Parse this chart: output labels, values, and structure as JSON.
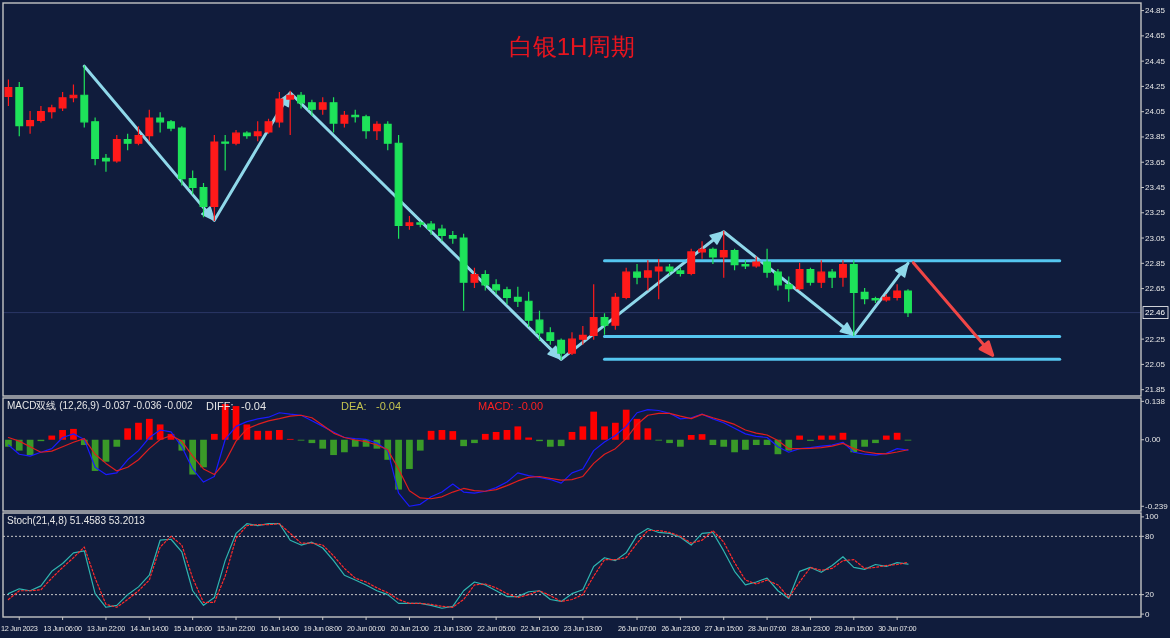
{
  "chart_data": [
    {
      "type": "candlestick",
      "title": "白银1H周期",
      "categories": [
        null,
        null,
        null,
        null,
        null,
        null,
        null,
        null,
        null,
        null,
        null,
        null,
        null,
        null,
        null,
        null,
        null,
        null,
        null,
        null,
        null,
        null,
        null,
        null,
        null,
        null,
        null,
        null,
        null,
        null,
        null,
        null,
        null,
        null,
        null,
        null,
        null,
        null,
        null,
        null,
        null,
        null,
        null,
        null,
        null,
        null,
        null,
        null,
        null,
        null,
        null,
        null,
        null,
        null,
        null,
        null,
        null,
        null,
        null,
        null,
        null,
        null,
        null,
        null,
        null,
        null,
        null,
        null,
        null,
        null,
        null,
        null,
        null,
        null,
        null,
        null,
        null,
        null,
        null,
        null,
        null,
        null,
        null,
        null,
        null,
        null,
        null,
        null,
        null,
        null,
        null,
        null,
        null,
        null,
        null,
        null,
        null,
        null,
        null,
        null,
        null,
        null,
        null,
        null,
        null
      ],
      "ohlc": [
        [
          24.17,
          24.3,
          24.1,
          24.24
        ],
        [
          24.24,
          24.28,
          23.86,
          23.94
        ],
        [
          23.94,
          24.05,
          23.88,
          23.98
        ],
        [
          23.98,
          24.09,
          23.97,
          24.05
        ],
        [
          24.05,
          24.1,
          24.0,
          24.08
        ],
        [
          24.08,
          24.2,
          24.06,
          24.16
        ],
        [
          24.16,
          24.26,
          24.13,
          24.18
        ],
        [
          24.18,
          24.41,
          23.93,
          23.97
        ],
        [
          23.97,
          24.0,
          23.63,
          23.68
        ],
        [
          23.68,
          23.71,
          23.58,
          23.66
        ],
        [
          23.66,
          23.86,
          23.65,
          23.83
        ],
        [
          23.83,
          23.87,
          23.75,
          23.8
        ],
        [
          23.8,
          23.93,
          23.79,
          23.86
        ],
        [
          23.86,
          24.06,
          23.82,
          24.0
        ],
        [
          24.0,
          24.04,
          23.89,
          23.97
        ],
        [
          23.97,
          23.98,
          23.9,
          23.92
        ],
        [
          23.92,
          23.93,
          23.47,
          23.52
        ],
        [
          23.52,
          23.58,
          23.4,
          23.45
        ],
        [
          23.45,
          23.48,
          23.22,
          23.3
        ],
        [
          23.3,
          23.86,
          23.19,
          23.81
        ],
        [
          23.81,
          23.86,
          23.59,
          23.8
        ],
        [
          23.8,
          23.9,
          23.79,
          23.88
        ],
        [
          23.88,
          23.89,
          23.84,
          23.86
        ],
        [
          23.86,
          23.97,
          23.82,
          23.89
        ],
        [
          23.89,
          23.99,
          23.88,
          23.97
        ],
        [
          23.97,
          24.2,
          23.93,
          24.15
        ],
        [
          24.15,
          24.21,
          23.87,
          24.18
        ],
        [
          24.18,
          24.2,
          24.08,
          24.12
        ],
        [
          24.12,
          24.14,
          24.02,
          24.07
        ],
        [
          24.07,
          24.16,
          24.03,
          24.12
        ],
        [
          24.12,
          24.16,
          23.89,
          23.96
        ],
        [
          23.96,
          24.05,
          23.93,
          24.02
        ],
        [
          24.02,
          24.06,
          23.97,
          24.01
        ],
        [
          24.01,
          24.02,
          23.84,
          23.9
        ],
        [
          23.9,
          23.97,
          23.83,
          23.95
        ],
        [
          23.95,
          23.97,
          23.75,
          23.8
        ],
        [
          23.8,
          23.86,
          23.05,
          23.15
        ],
        [
          23.15,
          23.22,
          23.12,
          23.17
        ],
        [
          23.17,
          23.18,
          23.14,
          23.16
        ],
        [
          23.16,
          23.18,
          23.08,
          23.12
        ],
        [
          23.12,
          23.15,
          23.03,
          23.07
        ],
        [
          23.07,
          23.1,
          23.01,
          23.05
        ],
        [
          23.05,
          23.08,
          22.48,
          22.7
        ],
        [
          22.7,
          22.81,
          22.66,
          22.76
        ],
        [
          22.76,
          22.79,
          22.64,
          22.68
        ],
        [
          22.68,
          22.72,
          22.61,
          22.64
        ],
        [
          22.64,
          22.66,
          22.53,
          22.58
        ],
        [
          22.58,
          22.66,
          22.51,
          22.55
        ],
        [
          22.55,
          22.62,
          22.35,
          22.4
        ],
        [
          22.4,
          22.47,
          22.24,
          22.3
        ],
        [
          22.3,
          22.34,
          22.21,
          22.24
        ],
        [
          22.24,
          22.25,
          22.09,
          22.14
        ],
        [
          22.14,
          22.3,
          22.13,
          22.25
        ],
        [
          22.25,
          22.35,
          22.21,
          22.28
        ],
        [
          22.28,
          22.68,
          22.25,
          22.42
        ],
        [
          22.42,
          22.45,
          22.29,
          22.36
        ],
        [
          22.36,
          22.61,
          22.33,
          22.58
        ],
        [
          22.58,
          22.81,
          22.57,
          22.78
        ],
        [
          22.78,
          22.84,
          22.69,
          22.74
        ],
        [
          22.74,
          22.87,
          22.64,
          22.79
        ],
        [
          22.79,
          22.88,
          22.57,
          22.82
        ],
        [
          22.82,
          22.84,
          22.76,
          22.79
        ],
        [
          22.79,
          22.81,
          22.75,
          22.77
        ],
        [
          22.77,
          22.96,
          22.76,
          22.94
        ],
        [
          22.94,
          23.02,
          22.89,
          22.96
        ],
        [
          22.96,
          22.97,
          22.85,
          22.9
        ],
        [
          22.9,
          23.1,
          22.74,
          22.95
        ],
        [
          22.95,
          22.96,
          22.8,
          22.84
        ],
        [
          22.84,
          22.87,
          22.81,
          22.83
        ],
        [
          22.83,
          22.9,
          22.82,
          22.86
        ],
        [
          22.86,
          22.96,
          22.74,
          22.78
        ],
        [
          22.78,
          22.8,
          22.64,
          22.68
        ],
        [
          22.68,
          22.74,
          22.55,
          22.65
        ],
        [
          22.65,
          22.85,
          22.64,
          22.8
        ],
        [
          22.8,
          22.81,
          22.68,
          22.7
        ],
        [
          22.7,
          22.87,
          22.66,
          22.78
        ],
        [
          22.78,
          22.8,
          22.66,
          22.74
        ],
        [
          22.74,
          22.87,
          22.67,
          22.84
        ],
        [
          22.84,
          22.87,
          22.28,
          22.62
        ],
        [
          22.62,
          22.65,
          22.53,
          22.57
        ],
        [
          22.57,
          22.58,
          22.54,
          22.56
        ],
        [
          22.56,
          22.6,
          22.55,
          22.58
        ],
        [
          22.58,
          22.68,
          22.56,
          22.63
        ],
        [
          22.63,
          22.64,
          22.43,
          22.46
        ],
        null,
        null,
        null,
        null,
        null,
        null,
        null,
        null,
        null,
        null,
        null,
        null,
        null,
        null,
        null,
        null,
        null,
        null,
        null,
        null,
        null
      ],
      "colors": [
        "#ff1a1a",
        "#1ee35a",
        "#ff1a1a",
        "#ff1a1a",
        "#ff1a1a",
        "#ff1a1a",
        "#ff1a1a",
        "#1ee35a",
        "#1ee35a",
        "#1ee35a",
        "#ff1a1a",
        "#1ee35a",
        "#ff1a1a",
        "#ff1a1a",
        "#1ee35a",
        "#1ee35a",
        "#1ee35a",
        "#1ee35a",
        "#1ee35a",
        "#ff1a1a",
        "#1ee35a",
        "#ff1a1a",
        "#1ee35a",
        "#ff1a1a",
        "#ff1a1a",
        "#ff1a1a",
        "#ff1a1a",
        "#1ee35a",
        "#1ee35a",
        "#ff1a1a",
        "#1ee35a",
        "#ff1a1a",
        "#1ee35a",
        "#1ee35a",
        "#ff1a1a",
        "#1ee35a",
        "#1ee35a",
        "#ff1a1a",
        "#1ee35a",
        "#1ee35a",
        "#1ee35a",
        "#1ee35a",
        "#1ee35a",
        "#ff1a1a",
        "#1ee35a",
        "#1ee35a",
        "#1ee35a",
        "#1ee35a",
        "#1ee35a",
        "#1ee35a",
        "#1ee35a",
        "#1ee35a",
        "#ff1a1a",
        "#ff1a1a",
        "#ff1a1a",
        "#1ee35a",
        "#ff1a1a",
        "#ff1a1a",
        "#1ee35a",
        "#ff1a1a",
        "#ff1a1a",
        "#1ee35a",
        "#1ee35a",
        "#ff1a1a",
        "#ff1a1a",
        "#1ee35a",
        "#ff1a1a",
        "#1ee35a",
        "#1ee35a",
        "#ff1a1a",
        "#1ee35a",
        "#1ee35a",
        "#1ee35a",
        "#ff1a1a",
        "#1ee35a",
        "#ff1a1a",
        "#1ee35a",
        "#ff1a1a",
        "#1ee35a",
        "#1ee35a",
        "#1ee35a",
        "#ff1a1a",
        "#ff1a1a",
        "#1ee35a",
        null,
        null,
        null,
        null,
        null,
        null,
        null,
        null,
        null,
        null,
        null,
        null,
        null,
        null,
        null,
        null,
        null,
        null,
        null,
        null,
        null
      ],
      "series": [
        {
          "type": "line",
          "color": "#8fd8ea",
          "values": [
            null,
            null,
            null,
            null,
            null,
            null,
            null,
            24.41,
            null,
            null,
            null,
            null,
            null,
            null,
            null,
            null,
            null,
            null,
            null,
            23.19,
            null,
            null,
            null,
            null,
            null,
            null,
            24.2,
            null,
            null,
            null,
            null,
            null,
            null,
            null,
            null,
            null,
            null,
            null,
            null,
            null,
            null,
            null,
            null,
            null,
            null,
            null,
            null,
            null,
            null,
            null,
            null,
            22.09,
            null,
            null,
            null,
            null,
            null,
            null,
            null,
            null,
            null,
            null,
            null,
            null,
            null,
            null,
            23.1,
            null,
            null,
            null,
            null,
            null,
            null,
            null,
            null,
            null,
            null,
            null,
            22.28,
            null,
            null,
            null,
            null,
            22.85,
            null,
            null,
            null,
            null,
            null,
            null,
            null,
            null,
            null,
            null,
            null,
            null,
            null,
            null,
            null,
            null,
            null,
            null,
            null,
            null,
            null
          ]
        },
        {
          "type": "line",
          "color": "#55c6f0",
          "values": [
            null,
            null,
            null,
            null,
            null,
            null,
            null,
            null,
            null,
            null,
            null,
            null,
            null,
            null,
            null,
            null,
            null,
            null,
            null,
            null,
            null,
            null,
            null,
            null,
            null,
            null,
            null,
            null,
            null,
            null,
            null,
            null,
            null,
            null,
            null,
            null,
            null,
            null,
            null,
            null,
            null,
            null,
            null,
            null,
            null,
            null,
            null,
            null,
            null,
            null,
            null,
            null,
            null,
            null,
            null,
            22.87,
            null,
            null,
            null,
            null,
            null,
            null,
            null,
            null,
            null,
            null,
            null,
            null,
            null,
            null,
            null,
            null,
            null,
            null,
            null,
            null,
            null,
            null,
            null,
            null,
            null,
            null,
            null,
            null,
            null,
            null,
            null,
            null,
            null,
            null,
            null,
            null,
            null,
            null,
            null,
            null,
            null,
            22.87,
            null,
            null,
            null,
            null,
            null,
            null,
            null
          ]
        },
        {
          "type": "line",
          "color": "#55c6f0",
          "values": [
            null,
            null,
            null,
            null,
            null,
            null,
            null,
            null,
            null,
            null,
            null,
            null,
            null,
            null,
            null,
            null,
            null,
            null,
            null,
            null,
            null,
            null,
            null,
            null,
            null,
            null,
            null,
            null,
            null,
            null,
            null,
            null,
            null,
            null,
            null,
            null,
            null,
            null,
            null,
            null,
            null,
            null,
            null,
            null,
            null,
            null,
            null,
            null,
            null,
            null,
            null,
            null,
            null,
            null,
            null,
            22.27,
            null,
            null,
            null,
            null,
            null,
            null,
            null,
            null,
            null,
            null,
            null,
            null,
            null,
            null,
            null,
            null,
            null,
            null,
            null,
            null,
            null,
            null,
            null,
            null,
            null,
            null,
            null,
            null,
            null,
            null,
            null,
            null,
            null,
            null,
            null,
            null,
            null,
            null,
            null,
            null,
            null,
            22.27,
            null,
            null,
            null,
            null,
            null,
            null,
            null
          ]
        },
        {
          "type": "line",
          "color": "#55c6f0",
          "values": [
            null,
            null,
            null,
            null,
            null,
            null,
            null,
            null,
            null,
            null,
            null,
            null,
            null,
            null,
            null,
            null,
            null,
            null,
            null,
            null,
            null,
            null,
            null,
            null,
            null,
            null,
            null,
            null,
            null,
            null,
            null,
            null,
            null,
            null,
            null,
            null,
            null,
            null,
            null,
            null,
            null,
            null,
            null,
            null,
            null,
            null,
            null,
            null,
            null,
            null,
            null,
            null,
            null,
            null,
            null,
            22.09,
            null,
            null,
            null,
            null,
            null,
            null,
            null,
            null,
            null,
            null,
            null,
            null,
            null,
            null,
            null,
            null,
            null,
            null,
            null,
            null,
            null,
            null,
            null,
            null,
            null,
            null,
            null,
            null,
            null,
            null,
            null,
            null,
            null,
            null,
            null,
            null,
            null,
            null,
            null,
            null,
            null,
            22.09,
            null,
            null,
            null,
            null,
            null,
            null,
            null
          ]
        }
      ],
      "ref_lines": [
        {
          "axis": "y",
          "value": 22.46,
          "label": "22.46",
          "color": "#2b3766"
        }
      ],
      "ylim": [
        21.8,
        24.91
      ],
      "yticks": [
        24.85,
        24.65,
        24.45,
        24.25,
        24.05,
        23.85,
        23.65,
        23.45,
        23.25,
        23.05,
        22.85,
        22.65,
        22.25,
        22.05,
        21.85
      ],
      "tick_labels": "y"
    },
    {
      "type": "bar",
      "title": "MACD双线 (12,26,9) -0.037 -0.036 -0.002",
      "categories": [
        null,
        null,
        null,
        null,
        null,
        null,
        null,
        null,
        null,
        null,
        null,
        null,
        null,
        null,
        null,
        null,
        null,
        null,
        null,
        null,
        null,
        null,
        null,
        null,
        null,
        null,
        null,
        null,
        null,
        null,
        null,
        null,
        null,
        null,
        null,
        null,
        null,
        null,
        null,
        null,
        null,
        null,
        null,
        null,
        null,
        null,
        null,
        null,
        null,
        null,
        null,
        null,
        null,
        null,
        null,
        null,
        null,
        null,
        null,
        null,
        null,
        null,
        null,
        null,
        null,
        null,
        null,
        null,
        null,
        null,
        null,
        null,
        null,
        null,
        null,
        null,
        null,
        null,
        null,
        null,
        null,
        null,
        null,
        null,
        null,
        null,
        null,
        null,
        null,
        null,
        null,
        null,
        null,
        null,
        null,
        null,
        null,
        null,
        null,
        null,
        null,
        null,
        null,
        null,
        null
      ],
      "series": [
        {
          "values": [
            -0.025,
            -0.039,
            -0.055,
            -0.005,
            0.015,
            0.035,
            0.039,
            -0.019,
            -0.112,
            -0.079,
            -0.025,
            0.041,
            0.061,
            0.075,
            0.055,
            0.021,
            -0.039,
            -0.125,
            -0.099,
            0.021,
            0.128,
            0.121,
            0.055,
            0.032,
            0.032,
            0.035,
            0.003,
            -0.003,
            -0.012,
            -0.032,
            -0.055,
            -0.045,
            -0.025,
            -0.025,
            -0.032,
            -0.072,
            -0.179,
            -0.105,
            -0.039,
            0.032,
            0.035,
            0.031,
            -0.023,
            -0.012,
            0.021,
            0.028,
            0.035,
            0.048,
            0.008,
            -0.005,
            -0.025,
            -0.023,
            0.028,
            0.048,
            0.101,
            0.048,
            0.061,
            0.108,
            0.075,
            0.041,
            -0.003,
            -0.012,
            -0.025,
            0.017,
            0.02,
            -0.019,
            -0.025,
            -0.045,
            -0.036,
            -0.019,
            -0.019,
            -0.052,
            -0.039,
            0.015,
            -0.004,
            0.015,
            0.015,
            0.025,
            -0.045,
            -0.025,
            -0.012,
            0.015,
            0.025,
            -0.002,
            null,
            null,
            null,
            null,
            null,
            null,
            null,
            null,
            null,
            null,
            null,
            null,
            null,
            null,
            null,
            null,
            null,
            null,
            null,
            null,
            null
          ],
          "colors": [
            "#3a9a28",
            "#3a9a28",
            "#3a9a28",
            "#3a9a28",
            "#ff0000",
            "#ff0000",
            "#ff0000",
            "#3a9a28",
            "#3a9a28",
            "#3a9a28",
            "#3a9a28",
            "#ff0000",
            "#ff0000",
            "#ff0000",
            "#ff0000",
            "#ff0000",
            "#3a9a28",
            "#3a9a28",
            "#3a9a28",
            "#ff0000",
            "#ff0000",
            "#ff0000",
            "#ff0000",
            "#ff0000",
            "#ff0000",
            "#ff0000",
            "#ff0000",
            "#3a9a28",
            "#3a9a28",
            "#3a9a28",
            "#3a9a28",
            "#3a9a28",
            "#3a9a28",
            "#3a9a28",
            "#3a9a28",
            "#3a9a28",
            "#3a9a28",
            "#3a9a28",
            "#3a9a28",
            "#ff0000",
            "#ff0000",
            "#ff0000",
            "#3a9a28",
            "#3a9a28",
            "#ff0000",
            "#ff0000",
            "#ff0000",
            "#ff0000",
            "#ff0000",
            "#3a9a28",
            "#3a9a28",
            "#3a9a28",
            "#ff0000",
            "#ff0000",
            "#ff0000",
            "#ff0000",
            "#ff0000",
            "#ff0000",
            "#ff0000",
            "#ff0000",
            "#3a9a28",
            "#3a9a28",
            "#3a9a28",
            "#ff0000",
            "#ff0000",
            "#3a9a28",
            "#3a9a28",
            "#3a9a28",
            "#3a9a28",
            "#3a9a28",
            "#3a9a28",
            "#3a9a28",
            "#3a9a28",
            "#ff0000",
            "#3a9a28",
            "#ff0000",
            "#ff0000",
            "#ff0000",
            "#3a9a28",
            "#3a9a28",
            "#3a9a28",
            "#ff0000",
            "#ff0000",
            "#3a9a28",
            null,
            null,
            null,
            null,
            null,
            null,
            null,
            null,
            null,
            null,
            null,
            null,
            null,
            null,
            null,
            null,
            null,
            null,
            null,
            null,
            null
          ]
        },
        {
          "type": "line",
          "color": "#1a1aff",
          "values": [
            -0.019,
            -0.052,
            -0.059,
            -0.045,
            -0.032,
            0.008,
            0.021,
            0.001,
            -0.099,
            -0.125,
            -0.119,
            -0.072,
            -0.039,
            0.008,
            0.035,
            0.028,
            -0.025,
            -0.105,
            -0.152,
            -0.132,
            0.001,
            0.048,
            0.065,
            0.075,
            0.081,
            0.097,
            0.092,
            0.088,
            0.068,
            0.048,
            0.028,
            0.008,
            0.004,
            0.001,
            -0.012,
            -0.039,
            -0.192,
            -0.239,
            -0.232,
            -0.205,
            -0.188,
            -0.159,
            -0.188,
            -0.192,
            -0.185,
            -0.172,
            -0.152,
            -0.119,
            -0.129,
            -0.135,
            -0.143,
            -0.156,
            -0.119,
            -0.105,
            -0.039,
            -0.008,
            0.015,
            0.048,
            0.097,
            0.108,
            0.105,
            0.095,
            0.075,
            0.079,
            0.092,
            0.075,
            0.061,
            0.041,
            0.021,
            0.012,
            0.008,
            -0.025,
            -0.045,
            -0.032,
            -0.028,
            -0.023,
            -0.019,
            -0.009,
            -0.045,
            -0.052,
            -0.055,
            -0.049,
            -0.032,
            -0.037,
            null,
            null,
            null,
            null,
            null,
            null,
            null,
            null,
            null,
            null,
            null,
            null,
            null,
            null,
            null,
            null,
            null,
            null,
            null,
            null,
            null
          ]
        },
        {
          "type": "line",
          "color": "#e01e1e",
          "values": [
            0.008,
            -0.005,
            -0.025,
            -0.045,
            -0.041,
            -0.025,
            -0.009,
            0.004,
            -0.052,
            -0.085,
            -0.112,
            -0.099,
            -0.072,
            -0.032,
            0.001,
            0.015,
            -0.005,
            -0.059,
            -0.105,
            -0.125,
            -0.079,
            -0.005,
            0.039,
            0.055,
            0.068,
            0.076,
            0.085,
            0.088,
            0.079,
            0.052,
            0.024,
            0.008,
            -0.001,
            -0.007,
            -0.019,
            -0.036,
            -0.105,
            -0.183,
            -0.209,
            -0.212,
            -0.205,
            -0.188,
            -0.175,
            -0.183,
            -0.185,
            -0.179,
            -0.165,
            -0.148,
            -0.135,
            -0.132,
            -0.139,
            -0.145,
            -0.143,
            -0.132,
            -0.085,
            -0.052,
            -0.032,
            0.004,
            0.055,
            0.088,
            0.095,
            0.095,
            0.085,
            0.076,
            0.091,
            0.079,
            0.068,
            0.055,
            0.035,
            0.024,
            0.017,
            -0.003,
            -0.032,
            -0.032,
            -0.031,
            -0.028,
            -0.023,
            -0.013,
            -0.032,
            -0.043,
            -0.049,
            -0.051,
            -0.044,
            -0.036,
            null,
            null,
            null,
            null,
            null,
            null,
            null,
            null,
            null,
            null,
            null,
            null,
            null,
            null,
            null,
            null,
            null,
            null,
            null,
            null,
            null
          ]
        }
      ],
      "annotations": [
        "DIFF:",
        "-0.04",
        "DEA:",
        "-0.04",
        "MACD:",
        "-0.00"
      ],
      "ylim": [
        -0.256,
        0.15
      ],
      "yticks": [
        0.138,
        {
          "value": 0,
          "label": "0.00"
        },
        -0.239
      ],
      "tick_labels": "y"
    },
    {
      "type": "line",
      "title": "Stoch(21,4,8) 51.4583 53.2013",
      "categories": [
        null,
        "12 Jun 2023",
        null,
        null,
        null,
        "13 Jun 06:00",
        null,
        null,
        null,
        "13 Jun 22:00",
        null,
        null,
        null,
        "14 Jun 14:00",
        null,
        null,
        null,
        "15 Jun 06:00",
        null,
        null,
        null,
        "15 Jun 22:00",
        null,
        null,
        null,
        "16 Jun 14:00",
        null,
        null,
        null,
        "19 Jun 08:00",
        null,
        null,
        null,
        "20 Jun 00:00",
        null,
        null,
        null,
        "20 Jun 21:00",
        null,
        null,
        null,
        "21 Jun 13:00",
        null,
        null,
        null,
        "22 Jun 05:00",
        null,
        null,
        null,
        "22 Jun 21:00",
        null,
        null,
        null,
        "23 Jun 13:00",
        null,
        null,
        null,
        null,
        "26 Jun 07:00",
        null,
        null,
        null,
        "26 Jun 23:00",
        null,
        null,
        null,
        "27 Jun 15:00",
        null,
        null,
        null,
        "28 Jun 07:00",
        null,
        null,
        null,
        "28 Jun 23:00",
        null,
        null,
        null,
        "29 Jun 15:00",
        null,
        null,
        null,
        "30 Jun 07:00",
        null,
        null,
        null,
        null,
        null,
        null,
        null,
        null,
        null,
        null,
        null,
        null,
        null,
        null,
        null,
        null,
        null,
        null,
        null,
        null,
        null,
        null
      ],
      "series": [
        {
          "color": "#2fb5b0",
          "values": [
            21,
            26,
            24,
            29,
            44,
            52,
            63,
            65,
            21,
            7,
            9,
            20,
            28,
            40,
            76,
            77,
            64,
            24,
            9,
            17,
            55,
            83,
            93,
            91,
            93,
            93,
            76,
            71,
            74,
            68,
            55,
            40,
            35,
            30,
            24,
            20,
            11,
            11,
            11,
            9,
            6,
            8,
            24,
            33,
            30,
            24,
            18,
            18,
            23,
            24,
            15,
            13,
            21,
            25,
            49,
            58,
            55,
            63,
            81,
            88,
            84,
            83,
            79,
            71,
            83,
            84,
            65,
            44,
            30,
            33,
            37,
            24,
            16,
            44,
            48,
            43,
            50,
            59,
            48,
            46,
            51,
            49,
            53,
            51.4583,
            null,
            null,
            null,
            null,
            null,
            null,
            null,
            null,
            null,
            null,
            null,
            null,
            null,
            null,
            null,
            null,
            null,
            null,
            null,
            null,
            null
          ]
        },
        {
          "color": "#ff2a2a",
          "line_style": "dotted",
          "values": [
            15,
            24,
            24,
            25,
            37,
            48,
            58,
            69,
            37,
            10,
            7,
            15,
            24,
            35,
            69,
            80,
            71,
            37,
            12,
            12,
            39,
            78,
            91,
            92,
            92,
            93,
            83,
            73,
            73,
            71,
            60,
            47,
            37,
            33,
            27,
            22,
            15,
            11,
            11,
            10,
            8,
            7,
            15,
            30,
            31,
            27,
            21,
            17,
            20,
            24,
            19,
            13,
            15,
            20,
            39,
            56,
            56,
            58,
            73,
            86,
            86,
            84,
            80,
            73,
            76,
            86,
            74,
            53,
            35,
            31,
            35,
            30,
            17,
            33,
            48,
            45,
            47,
            55,
            56,
            47,
            48,
            50,
            51,
            53.2013,
            null,
            null,
            null,
            null,
            null,
            null,
            null,
            null,
            null,
            null,
            null,
            null,
            null,
            null,
            null,
            null,
            null,
            null,
            null,
            null,
            null
          ]
        }
      ],
      "ref_lines": [
        {
          "axis": "y",
          "value": 80,
          "color": "#c8c8c8",
          "line_style": "dotted"
        },
        {
          "axis": "y",
          "value": 20,
          "color": "#c8c8c8",
          "line_style": "dotted"
        }
      ],
      "ylim": [
        -3,
        104
      ],
      "yticks": [
        100,
        80,
        20,
        0
      ]
    }
  ]
}
